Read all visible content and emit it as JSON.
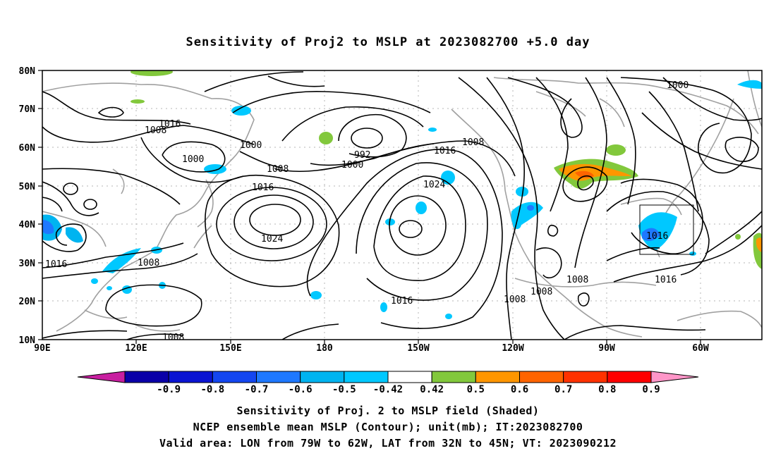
{
  "title": "Sensitivity of Proj2 to MSLP at 2023082700 +5.0 day",
  "captions": [
    "Sensitivity of Proj. 2 to MSLP field (Shaded)",
    "NCEP ensemble mean MSLP (Contour); unit(mb); IT:2023082700",
    "Valid area: LON from 79W to 62W, LAT from 32N to 45N; VT: 2023090212"
  ],
  "map": {
    "lon_labels": [
      "90E",
      "120E",
      "150E",
      "180",
      "150W",
      "120W",
      "90W",
      "60W"
    ],
    "lat_labels": [
      "80N",
      "70N",
      "60N",
      "50N",
      "40N",
      "30N",
      "20N",
      "10N"
    ]
  },
  "colorbar": {
    "labels": [
      "-0.9",
      "-0.8",
      "-0.7",
      "-0.6",
      "-0.5",
      "-0.42",
      "0.42",
      "0.5",
      "0.6",
      "0.7",
      "0.8",
      "0.9"
    ],
    "colors": [
      "#c81ea0",
      "#0a00a8",
      "#0a14d2",
      "#1446f0",
      "#1e78ff",
      "#00b4f0",
      "#00c8ff",
      "#ffffff",
      "#82c83c",
      "#ff9600",
      "#ff6400",
      "#ff3200",
      "#ff0000",
      "#ff96c8"
    ]
  },
  "contour_labels": [
    {
      "text": "1016"
    },
    {
      "text": "1008"
    },
    {
      "text": "1000"
    },
    {
      "text": "1000"
    },
    {
      "text": "1008"
    },
    {
      "text": "1016"
    },
    {
      "text": "992"
    },
    {
      "text": "1000"
    },
    {
      "text": "1016"
    },
    {
      "text": "1008"
    },
    {
      "text": "1024"
    },
    {
      "text": "1024"
    },
    {
      "text": "1016"
    },
    {
      "text": "1008"
    },
    {
      "text": "1016"
    },
    {
      "text": "1008"
    },
    {
      "text": "1008"
    },
    {
      "text": "1008"
    },
    {
      "text": "1016"
    },
    {
      "text": "1000"
    },
    {
      "text": "1016"
    },
    {
      "text": "1008"
    }
  ]
}
